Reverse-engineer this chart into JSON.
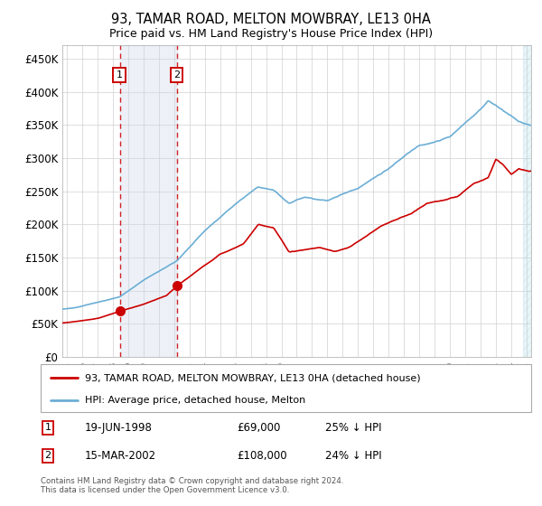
{
  "title": "93, TAMAR ROAD, MELTON MOWBRAY, LE13 0HA",
  "subtitle": "Price paid vs. HM Land Registry's House Price Index (HPI)",
  "ylim": [
    0,
    470000
  ],
  "yticks": [
    0,
    50000,
    100000,
    150000,
    200000,
    250000,
    300000,
    350000,
    400000,
    450000
  ],
  "xlim_start": 1994.7,
  "xlim_end": 2025.3,
  "purchase1_date": 1998.46,
  "purchase1_price": 69000,
  "purchase2_date": 2002.21,
  "purchase2_price": 108000,
  "hpi_color": "#6baed6",
  "price_color": "#cc0000",
  "shading_color": "#ccd9ea",
  "legend1": "93, TAMAR ROAD, MELTON MOWBRAY, LE13 0HA (detached house)",
  "legend2": "HPI: Average price, detached house, Melton",
  "footnote1": "Contains HM Land Registry data © Crown copyright and database right 2024.",
  "footnote2": "This data is licensed under the Open Government Licence v3.0."
}
